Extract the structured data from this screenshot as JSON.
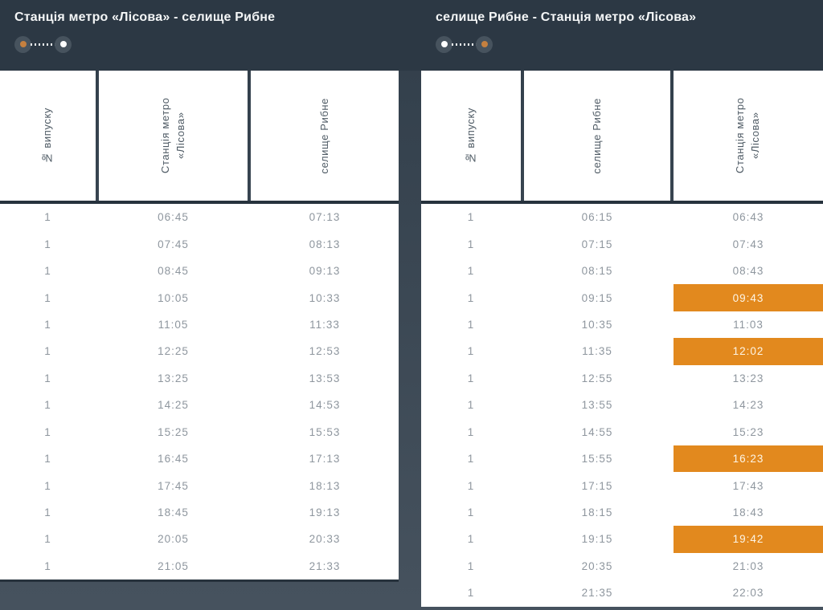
{
  "theme": {
    "band_bg": "#2c3844",
    "page_bg_top": "#313e4a",
    "page_bg_bottom": "#46525e",
    "table_bg": "#ffffff",
    "accent_orange": "#e2891e",
    "highlight_text": "#fdf5e6",
    "body_text": "#8e969e",
    "header_text": "#4e5a64",
    "title_text": "#f4f6f7",
    "divider": "#27323d",
    "endpoint_bg": "#47535e",
    "icon_orange": "#c5803f",
    "icon_white": "#ffffff"
  },
  "panels": [
    {
      "title": "Станція метро «Лісова» - селище Рибне",
      "route_icon": {
        "start_dot": "orange-dot",
        "end_dot": "white-dot"
      },
      "columns": {
        "issue": "№ випуску",
        "from": "Станція метро «Лісова»",
        "to": "селище Рибне"
      },
      "rows": [
        {
          "issue": "1",
          "from": "06:45",
          "to": "07:13",
          "to_highlight": false
        },
        {
          "issue": "1",
          "from": "07:45",
          "to": "08:13",
          "to_highlight": false
        },
        {
          "issue": "1",
          "from": "08:45",
          "to": "09:13",
          "to_highlight": false
        },
        {
          "issue": "1",
          "from": "10:05",
          "to": "10:33",
          "to_highlight": false
        },
        {
          "issue": "1",
          "from": "11:05",
          "to": "11:33",
          "to_highlight": false
        },
        {
          "issue": "1",
          "from": "12:25",
          "to": "12:53",
          "to_highlight": false
        },
        {
          "issue": "1",
          "from": "13:25",
          "to": "13:53",
          "to_highlight": false
        },
        {
          "issue": "1",
          "from": "14:25",
          "to": "14:53",
          "to_highlight": false
        },
        {
          "issue": "1",
          "from": "15:25",
          "to": "15:53",
          "to_highlight": false
        },
        {
          "issue": "1",
          "from": "16:45",
          "to": "17:13",
          "to_highlight": false
        },
        {
          "issue": "1",
          "from": "17:45",
          "to": "18:13",
          "to_highlight": false
        },
        {
          "issue": "1",
          "from": "18:45",
          "to": "19:13",
          "to_highlight": false
        },
        {
          "issue": "1",
          "from": "20:05",
          "to": "20:33",
          "to_highlight": false
        },
        {
          "issue": "1",
          "from": "21:05",
          "to": "21:33",
          "to_highlight": false
        }
      ]
    },
    {
      "title": "селище Рибне - Станція метро «Лісова»",
      "route_icon": {
        "start_dot": "white-dot",
        "end_dot": "orange-dot"
      },
      "columns": {
        "issue": "№ випуску",
        "from": "селище Рибне",
        "to": "Станція метро «Лісова»"
      },
      "rows": [
        {
          "issue": "1",
          "from": "06:15",
          "to": "06:43",
          "to_highlight": false
        },
        {
          "issue": "1",
          "from": "07:15",
          "to": "07:43",
          "to_highlight": false
        },
        {
          "issue": "1",
          "from": "08:15",
          "to": "08:43",
          "to_highlight": false
        },
        {
          "issue": "1",
          "from": "09:15",
          "to": "09:43",
          "to_highlight": true
        },
        {
          "issue": "1",
          "from": "10:35",
          "to": "11:03",
          "to_highlight": false
        },
        {
          "issue": "1",
          "from": "11:35",
          "to": "12:02",
          "to_highlight": true
        },
        {
          "issue": "1",
          "from": "12:55",
          "to": "13:23",
          "to_highlight": false
        },
        {
          "issue": "1",
          "from": "13:55",
          "to": "14:23",
          "to_highlight": false
        },
        {
          "issue": "1",
          "from": "14:55",
          "to": "15:23",
          "to_highlight": false
        },
        {
          "issue": "1",
          "from": "15:55",
          "to": "16:23",
          "to_highlight": true
        },
        {
          "issue": "1",
          "from": "17:15",
          "to": "17:43",
          "to_highlight": false
        },
        {
          "issue": "1",
          "from": "18:15",
          "to": "18:43",
          "to_highlight": false
        },
        {
          "issue": "1",
          "from": "19:15",
          "to": "19:42",
          "to_highlight": true
        },
        {
          "issue": "1",
          "from": "20:35",
          "to": "21:03",
          "to_highlight": false
        },
        {
          "issue": "1",
          "from": "21:35",
          "to": "22:03",
          "to_highlight": false
        }
      ]
    }
  ]
}
